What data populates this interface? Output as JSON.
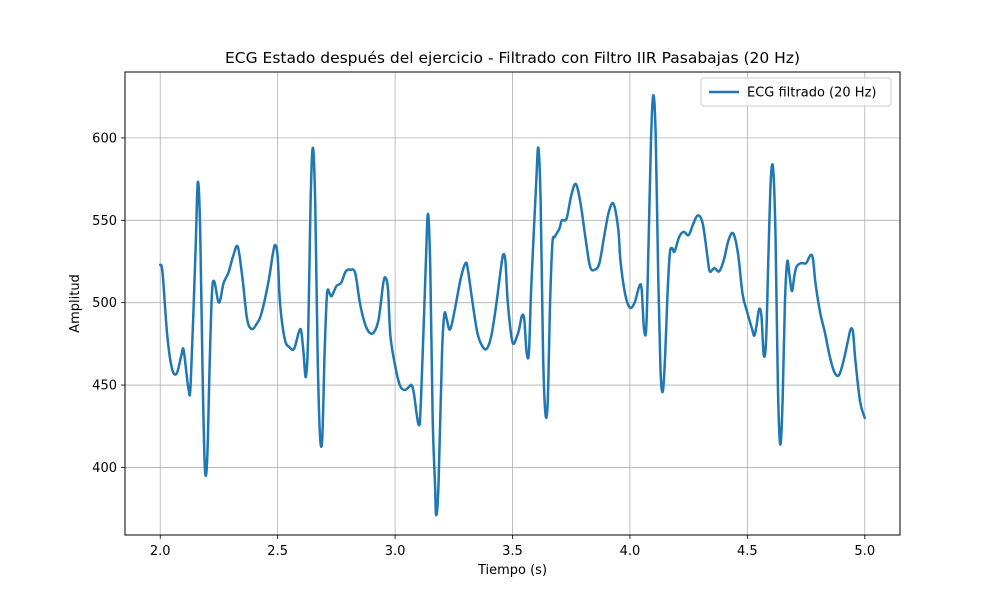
{
  "chart_data": {
    "type": "line",
    "title": "ECG Estado después del ejercicio - Filtrado con Filtro IIR Pasabajas (20 Hz)",
    "xlabel": "Tiempo (s)",
    "ylabel": "Amplitud",
    "xlim": [
      1.85,
      5.15
    ],
    "ylim": [
      359,
      640
    ],
    "x_ticks": [
      2.0,
      2.5,
      3.0,
      3.5,
      4.0,
      4.5,
      5.0
    ],
    "x_tick_labels": [
      "2.0",
      "2.5",
      "3.0",
      "3.5",
      "4.0",
      "4.5",
      "5.0"
    ],
    "y_ticks": [
      400,
      450,
      500,
      550,
      600
    ],
    "y_tick_labels": [
      "400",
      "450",
      "500",
      "550",
      "600"
    ],
    "grid": true,
    "legend_position": "upper right",
    "series": [
      {
        "name": "ECG filtrado (20 Hz)",
        "color": "#1f77b4",
        "points": [
          [
            2.0,
            523
          ],
          [
            2.01,
            518
          ],
          [
            2.03,
            480
          ],
          [
            2.05,
            460
          ],
          [
            2.07,
            457
          ],
          [
            2.09,
            468
          ],
          [
            2.1,
            471
          ],
          [
            2.12,
            448
          ],
          [
            2.13,
            452
          ],
          [
            2.15,
            530
          ],
          [
            2.16,
            573
          ],
          [
            2.17,
            545
          ],
          [
            2.18,
            460
          ],
          [
            2.19,
            400
          ],
          [
            2.2,
            405
          ],
          [
            2.21,
            460
          ],
          [
            2.22,
            505
          ],
          [
            2.23,
            513
          ],
          [
            2.25,
            500
          ],
          [
            2.27,
            512
          ],
          [
            2.29,
            518
          ],
          [
            2.31,
            528
          ],
          [
            2.33,
            534
          ],
          [
            2.35,
            515
          ],
          [
            2.37,
            490
          ],
          [
            2.39,
            484
          ],
          [
            2.41,
            487
          ],
          [
            2.43,
            493
          ],
          [
            2.46,
            512
          ],
          [
            2.48,
            530
          ],
          [
            2.49,
            535
          ],
          [
            2.5,
            528
          ],
          [
            2.51,
            500
          ],
          [
            2.53,
            478
          ],
          [
            2.55,
            473
          ],
          [
            2.57,
            472
          ],
          [
            2.59,
            482
          ],
          [
            2.6,
            483
          ],
          [
            2.61,
            470
          ],
          [
            2.62,
            455
          ],
          [
            2.63,
            480
          ],
          [
            2.64,
            560
          ],
          [
            2.65,
            594
          ],
          [
            2.66,
            560
          ],
          [
            2.67,
            470
          ],
          [
            2.68,
            420
          ],
          [
            2.69,
            418
          ],
          [
            2.7,
            470
          ],
          [
            2.71,
            505
          ],
          [
            2.72,
            506
          ],
          [
            2.73,
            504
          ],
          [
            2.75,
            510
          ],
          [
            2.77,
            512
          ],
          [
            2.79,
            519
          ],
          [
            2.81,
            520
          ],
          [
            2.83,
            518
          ],
          [
            2.85,
            500
          ],
          [
            2.87,
            488
          ],
          [
            2.89,
            482
          ],
          [
            2.91,
            482
          ],
          [
            2.93,
            490
          ],
          [
            2.95,
            512
          ],
          [
            2.96,
            515
          ],
          [
            2.97,
            508
          ],
          [
            2.98,
            480
          ],
          [
            3.0,
            462
          ],
          [
            3.02,
            450
          ],
          [
            3.04,
            447
          ],
          [
            3.06,
            449
          ],
          [
            3.07,
            450
          ],
          [
            3.08,
            445
          ],
          [
            3.1,
            426
          ],
          [
            3.11,
            440
          ],
          [
            3.13,
            520
          ],
          [
            3.14,
            554
          ],
          [
            3.15,
            520
          ],
          [
            3.16,
            430
          ],
          [
            3.17,
            390
          ],
          [
            3.175,
            371
          ],
          [
            3.185,
            390
          ],
          [
            3.2,
            470
          ],
          [
            3.21,
            493
          ],
          [
            3.22,
            490
          ],
          [
            3.23,
            484
          ],
          [
            3.24,
            486
          ],
          [
            3.26,
            500
          ],
          [
            3.28,
            515
          ],
          [
            3.3,
            524
          ],
          [
            3.31,
            520
          ],
          [
            3.33,
            500
          ],
          [
            3.35,
            482
          ],
          [
            3.37,
            474
          ],
          [
            3.39,
            472
          ],
          [
            3.41,
            480
          ],
          [
            3.43,
            498
          ],
          [
            3.45,
            520
          ],
          [
            3.46,
            529
          ],
          [
            3.47,
            525
          ],
          [
            3.48,
            500
          ],
          [
            3.5,
            476
          ],
          [
            3.52,
            480
          ],
          [
            3.53,
            485
          ],
          [
            3.54,
            492
          ],
          [
            3.55,
            490
          ],
          [
            3.56,
            470
          ],
          [
            3.57,
            470
          ],
          [
            3.58,
            510
          ],
          [
            3.6,
            570
          ],
          [
            3.61,
            594
          ],
          [
            3.62,
            560
          ],
          [
            3.63,
            470
          ],
          [
            3.64,
            433
          ],
          [
            3.65,
            440
          ],
          [
            3.66,
            500
          ],
          [
            3.67,
            536
          ],
          [
            3.68,
            540
          ],
          [
            3.7,
            545
          ],
          [
            3.71,
            550
          ],
          [
            3.73,
            551
          ],
          [
            3.75,
            565
          ],
          [
            3.77,
            572
          ],
          [
            3.79,
            560
          ],
          [
            3.81,
            540
          ],
          [
            3.83,
            522
          ],
          [
            3.85,
            520
          ],
          [
            3.87,
            524
          ],
          [
            3.89,
            540
          ],
          [
            3.91,
            555
          ],
          [
            3.93,
            560
          ],
          [
            3.95,
            545
          ],
          [
            3.96,
            525
          ],
          [
            3.98,
            505
          ],
          [
            4.0,
            497
          ],
          [
            4.02,
            500
          ],
          [
            4.04,
            510
          ],
          [
            4.05,
            508
          ],
          [
            4.06,
            484
          ],
          [
            4.07,
            486
          ],
          [
            4.08,
            540
          ],
          [
            4.09,
            600
          ],
          [
            4.1,
            626
          ],
          [
            4.11,
            600
          ],
          [
            4.12,
            520
          ],
          [
            4.13,
            460
          ],
          [
            4.14,
            446
          ],
          [
            4.15,
            468
          ],
          [
            4.16,
            505
          ],
          [
            4.17,
            530
          ],
          [
            4.18,
            533
          ],
          [
            4.19,
            531
          ],
          [
            4.21,
            540
          ],
          [
            4.23,
            543
          ],
          [
            4.25,
            541
          ],
          [
            4.27,
            548
          ],
          [
            4.29,
            553
          ],
          [
            4.31,
            548
          ],
          [
            4.33,
            528
          ],
          [
            4.34,
            519
          ],
          [
            4.36,
            521
          ],
          [
            4.38,
            519
          ],
          [
            4.4,
            526
          ],
          [
            4.42,
            538
          ],
          [
            4.44,
            542
          ],
          [
            4.46,
            530
          ],
          [
            4.48,
            505
          ],
          [
            4.5,
            494
          ],
          [
            4.52,
            484
          ],
          [
            4.53,
            480
          ],
          [
            4.54,
            487
          ],
          [
            4.55,
            496
          ],
          [
            4.56,
            492
          ],
          [
            4.57,
            468
          ],
          [
            4.58,
            478
          ],
          [
            4.59,
            530
          ],
          [
            4.6,
            575
          ],
          [
            4.61,
            581
          ],
          [
            4.62,
            540
          ],
          [
            4.63,
            450
          ],
          [
            4.64,
            414
          ],
          [
            4.65,
            440
          ],
          [
            4.66,
            500
          ],
          [
            4.67,
            525
          ],
          [
            4.68,
            516
          ],
          [
            4.69,
            507
          ],
          [
            4.7,
            516
          ],
          [
            4.71,
            522
          ],
          [
            4.73,
            524
          ],
          [
            4.75,
            524
          ],
          [
            4.77,
            529
          ],
          [
            4.78,
            526
          ],
          [
            4.79,
            512
          ],
          [
            4.81,
            494
          ],
          [
            4.83,
            482
          ],
          [
            4.85,
            468
          ],
          [
            4.87,
            458
          ],
          [
            4.89,
            456
          ],
          [
            4.91,
            465
          ],
          [
            4.93,
            478
          ],
          [
            4.94,
            484
          ],
          [
            4.95,
            482
          ],
          [
            4.96,
            465
          ],
          [
            4.98,
            440
          ],
          [
            5.0,
            430
          ]
        ]
      }
    ]
  }
}
